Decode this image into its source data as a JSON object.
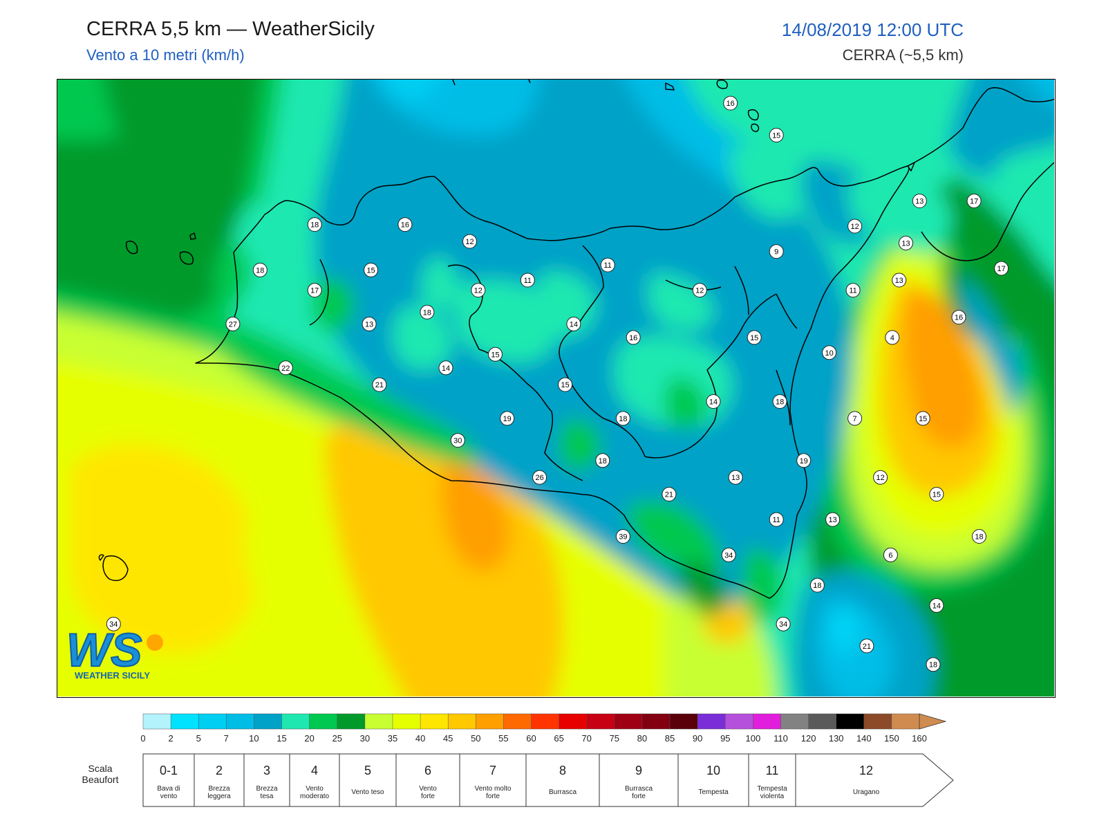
{
  "header": {
    "title": "CERRA 5,5 km — WeatherSicily",
    "subtitle": "Vento a 10 metri (km/h)",
    "datetime": "14/08/2019 12:00 UTC",
    "model": "CERRA (~5,5 km)"
  },
  "logo": {
    "letters": "WS",
    "text": "WEATHER SICILY"
  },
  "stations": [
    {
      "v": "16",
      "lon": 14.95,
      "lat": 38.79
    },
    {
      "v": "15",
      "lon": 15.22,
      "lat": 38.6
    },
    {
      "v": "18",
      "lon": 12.51,
      "lat": 38.07
    },
    {
      "v": "16",
      "lon": 13.04,
      "lat": 38.07
    },
    {
      "v": "12",
      "lon": 13.42,
      "lat": 37.97
    },
    {
      "v": "11",
      "lon": 14.23,
      "lat": 37.83
    },
    {
      "v": "9",
      "lon": 15.22,
      "lat": 37.91
    },
    {
      "v": "12",
      "lon": 15.68,
      "lat": 38.06
    },
    {
      "v": "13",
      "lon": 16.06,
      "lat": 38.21
    },
    {
      "v": "17",
      "lon": 16.38,
      "lat": 38.21
    },
    {
      "v": "13",
      "lon": 15.98,
      "lat": 37.96
    },
    {
      "v": "18",
      "lon": 12.19,
      "lat": 37.8
    },
    {
      "v": "15",
      "lon": 12.84,
      "lat": 37.8
    },
    {
      "v": "17",
      "lon": 12.51,
      "lat": 37.68
    },
    {
      "v": "11",
      "lon": 13.76,
      "lat": 37.74
    },
    {
      "v": "12",
      "lon": 13.47,
      "lat": 37.68
    },
    {
      "v": "12",
      "lon": 14.77,
      "lat": 37.68
    },
    {
      "v": "13",
      "lon": 15.94,
      "lat": 37.74
    },
    {
      "v": "17",
      "lon": 16.54,
      "lat": 37.81
    },
    {
      "v": "11",
      "lon": 15.67,
      "lat": 37.68
    },
    {
      "v": "16",
      "lon": 16.29,
      "lat": 37.52
    },
    {
      "v": "27",
      "lon": 12.03,
      "lat": 37.48
    },
    {
      "v": "13",
      "lon": 12.83,
      "lat": 37.48
    },
    {
      "v": "18",
      "lon": 13.17,
      "lat": 37.55
    },
    {
      "v": "14",
      "lon": 14.03,
      "lat": 37.48
    },
    {
      "v": "16",
      "lon": 14.38,
      "lat": 37.4
    },
    {
      "v": "15",
      "lon": 15.09,
      "lat": 37.4
    },
    {
      "v": "4",
      "lon": 15.9,
      "lat": 37.4
    },
    {
      "v": "15",
      "lon": 13.57,
      "lat": 37.3
    },
    {
      "v": "10",
      "lon": 15.53,
      "lat": 37.31
    },
    {
      "v": "22",
      "lon": 12.34,
      "lat": 37.22
    },
    {
      "v": "14",
      "lon": 13.28,
      "lat": 37.22
    },
    {
      "v": "21",
      "lon": 12.89,
      "lat": 37.12
    },
    {
      "v": "15",
      "lon": 13.98,
      "lat": 37.12
    },
    {
      "v": "14",
      "lon": 14.85,
      "lat": 37.02
    },
    {
      "v": "18",
      "lon": 15.24,
      "lat": 37.02
    },
    {
      "v": "19",
      "lon": 13.64,
      "lat": 36.92
    },
    {
      "v": "18",
      "lon": 14.32,
      "lat": 36.92
    },
    {
      "v": "7",
      "lon": 15.68,
      "lat": 36.92
    },
    {
      "v": "15",
      "lon": 16.08,
      "lat": 36.92
    },
    {
      "v": "30",
      "lon": 13.35,
      "lat": 36.79
    },
    {
      "v": "18",
      "lon": 14.2,
      "lat": 36.67
    },
    {
      "v": "19",
      "lon": 15.38,
      "lat": 36.67
    },
    {
      "v": "26",
      "lon": 13.83,
      "lat": 36.57
    },
    {
      "v": "13",
      "lon": 14.98,
      "lat": 36.57
    },
    {
      "v": "12",
      "lon": 15.83,
      "lat": 36.57
    },
    {
      "v": "21",
      "lon": 14.59,
      "lat": 36.47
    },
    {
      "v": "15",
      "lon": 16.16,
      "lat": 36.47
    },
    {
      "v": "11",
      "lon": 15.22,
      "lat": 36.32
    },
    {
      "v": "13",
      "lon": 15.55,
      "lat": 36.32
    },
    {
      "v": "39",
      "lon": 14.32,
      "lat": 36.22
    },
    {
      "v": "18",
      "lon": 16.41,
      "lat": 36.22
    },
    {
      "v": "34",
      "lon": 14.94,
      "lat": 36.11
    },
    {
      "v": "6",
      "lon": 15.89,
      "lat": 36.11
    },
    {
      "v": "18",
      "lon": 15.46,
      "lat": 35.93
    },
    {
      "v": "14",
      "lon": 16.16,
      "lat": 35.81
    },
    {
      "v": "34",
      "lon": 11.33,
      "lat": 35.7
    },
    {
      "v": "34",
      "lon": 15.26,
      "lat": 35.7
    },
    {
      "v": "21",
      "lon": 15.75,
      "lat": 35.57
    },
    {
      "v": "18",
      "lon": 16.14,
      "lat": 35.46
    }
  ],
  "colorbar": {
    "ticks": [
      "0",
      "2",
      "5",
      "7",
      "10",
      "15",
      "20",
      "25",
      "30",
      "35",
      "40",
      "45",
      "50",
      "55",
      "60",
      "65",
      "70",
      "75",
      "80",
      "85",
      "90",
      "95",
      "100",
      "110",
      "120",
      "130",
      "140",
      "150",
      "160"
    ],
    "colors": [
      "#b3f3fb",
      "#00e2ff",
      "#00cff2",
      "#00bde6",
      "#00a2c7",
      "#1ee8b0",
      "#00c850",
      "#009a2a",
      "#c8ff32",
      "#e6ff00",
      "#ffe600",
      "#ffc800",
      "#ff9f00",
      "#ff6a00",
      "#ff3400",
      "#e60000",
      "#c80014",
      "#a00014",
      "#820010",
      "#5a000a",
      "#7a2ed8",
      "#b450dc",
      "#e01edc",
      "#828282",
      "#5a5a5a",
      "#000000",
      "#8c4a28",
      "#d08c50"
    ]
  },
  "beaufort": {
    "title_line1": "Scala",
    "title_line2": "Beaufort",
    "items": [
      {
        "num": "0-1",
        "l1": "Bava di",
        "l2": "vento",
        "w": 74
      },
      {
        "num": "2",
        "l1": "Brezza",
        "l2": "leggera",
        "w": 72
      },
      {
        "num": "3",
        "l1": "Brezza",
        "l2": "tesa",
        "w": 66
      },
      {
        "num": "4",
        "l1": "Vento",
        "l2": "moderato",
        "w": 72
      },
      {
        "num": "5",
        "l1": "Vento teso",
        "l2": "",
        "w": 82
      },
      {
        "num": "6",
        "l1": "Vento",
        "l2": "forte",
        "w": 92
      },
      {
        "num": "7",
        "l1": "Vento molto",
        "l2": "forte",
        "w": 96
      },
      {
        "num": "8",
        "l1": "Burrasca",
        "l2": "",
        "w": 106
      },
      {
        "num": "9",
        "l1": "Burrasca",
        "l2": "forte",
        "w": 114
      },
      {
        "num": "10",
        "l1": "Tempesta",
        "l2": "",
        "w": 102
      },
      {
        "num": "11",
        "l1": "Tempesta",
        "l2": "violenta",
        "w": 68
      },
      {
        "num": "12",
        "l1": "Uragano",
        "l2": "",
        "w": 228
      }
    ]
  }
}
